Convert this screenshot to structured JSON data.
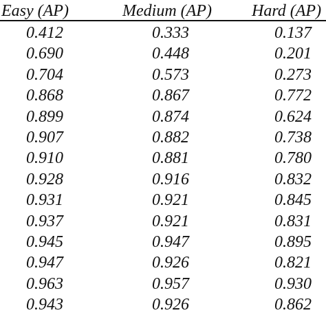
{
  "table": {
    "headers": [
      "Easy (AP)",
      "Medium (AP)",
      "Hard (AP)"
    ],
    "rows": [
      [
        "0.412",
        "0.333",
        "0.137"
      ],
      [
        "0.690",
        "0.448",
        "0.201"
      ],
      [
        "0.704",
        "0.573",
        "0.273"
      ],
      [
        "0.868",
        "0.867",
        "0.772"
      ],
      [
        "0.899",
        "0.874",
        "0.624"
      ],
      [
        "0.907",
        "0.882",
        "0.738"
      ],
      [
        "0.910",
        "0.881",
        "0.780"
      ],
      [
        "0.928",
        "0.916",
        "0.832"
      ],
      [
        "0.931",
        "0.921",
        "0.845"
      ],
      [
        "0.937",
        "0.921",
        "0.831"
      ],
      [
        "0.945",
        "0.947",
        "0.895"
      ],
      [
        "0.947",
        "0.926",
        "0.821"
      ],
      [
        "0.963",
        "0.957",
        "0.930"
      ],
      [
        "0.943",
        "0.926",
        "0.862"
      ]
    ]
  }
}
